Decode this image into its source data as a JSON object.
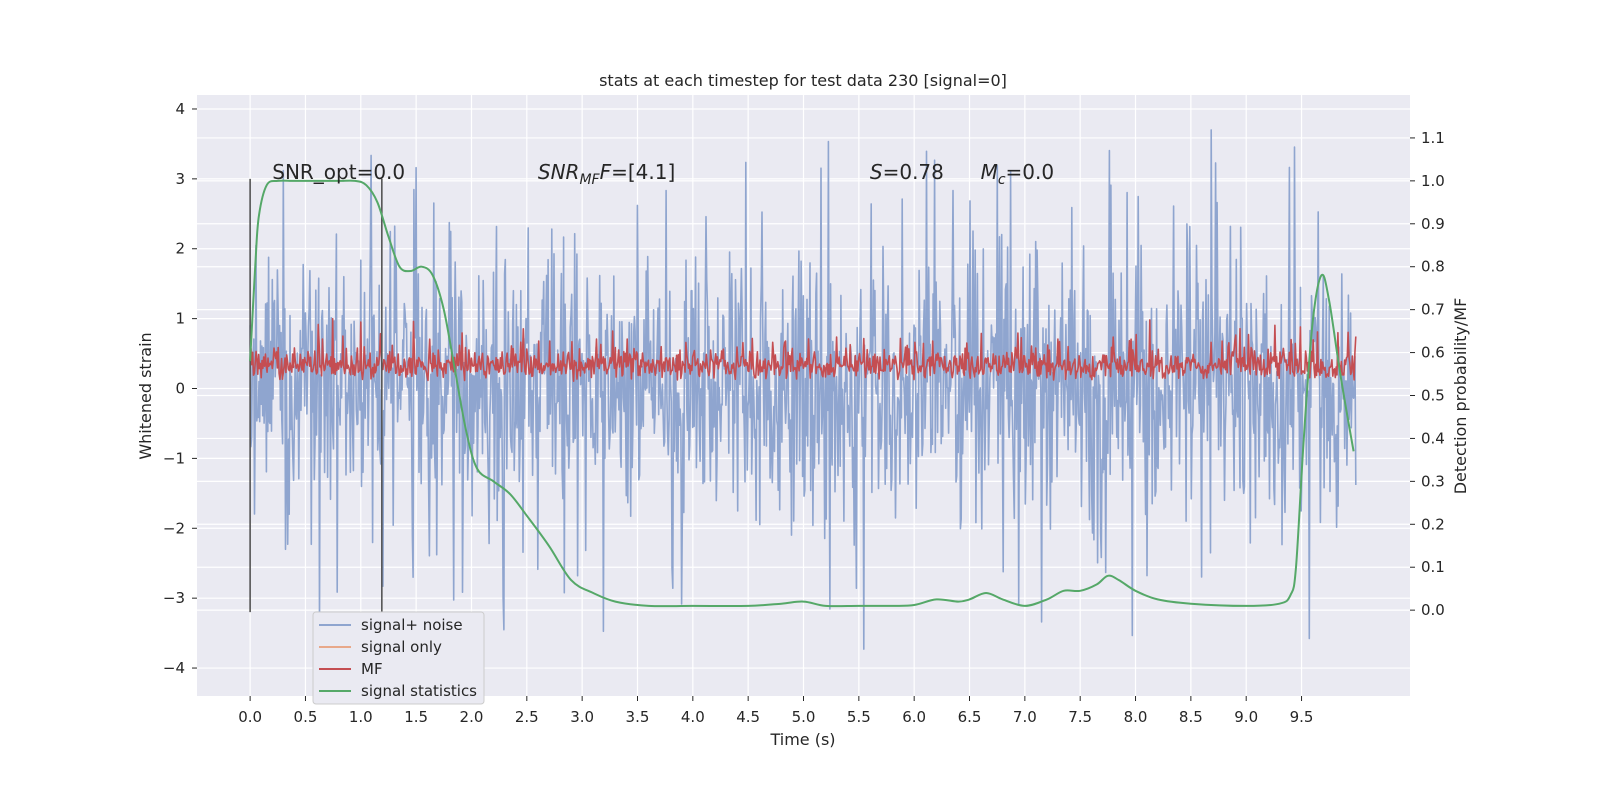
{
  "chart_data": {
    "type": "line",
    "title": "stats at each timestep for test data 230 [signal=0]",
    "xlabel": "Time (s)",
    "ylabel": "Whitened strain",
    "ylabel_right": "Detection probability/MF",
    "xlim": [
      -0.48,
      10.48
    ],
    "ylim": [
      -4.4,
      4.2
    ],
    "ylim_right": [
      -0.2,
      1.2
    ],
    "x_ticks": [
      "0.0",
      "0.5",
      "1.0",
      "1.5",
      "2.0",
      "2.5",
      "3.0",
      "3.5",
      "4.0",
      "4.5",
      "5.0",
      "5.5",
      "6.0",
      "6.5",
      "7.0",
      "7.5",
      "8.0",
      "8.5",
      "9.0",
      "9.5"
    ],
    "y_ticks": [
      "−4",
      "−3",
      "−2",
      "−1",
      "0",
      "1",
      "2",
      "3",
      "4"
    ],
    "y_ticks_right": [
      "0.0",
      "0.1",
      "0.2",
      "0.3",
      "0.4",
      "0.5",
      "0.6",
      "0.7",
      "0.8",
      "0.9",
      "1.0",
      "1.1"
    ],
    "grid": true,
    "legend_position": "lower-left",
    "annotations": [
      {
        "text": "SNR_opt=0.0",
        "x": 0.2,
        "y": 3.0
      },
      {
        "text": "SNR",
        "sub": "MF",
        "tail": "F=[4.1]",
        "x": 2.6,
        "y": 3.0
      },
      {
        "text": "S",
        "tail": "=0.78",
        "x": 5.6,
        "y": 3.0
      },
      {
        "text": "M",
        "sub": "c",
        "tail": "=0.0",
        "x": 6.6,
        "y": 3.0
      }
    ],
    "vlines": [
      {
        "x": 0.0,
        "y_range": [
          -3.2,
          3.0
        ],
        "color": "#555555"
      },
      {
        "x": 1.19,
        "y_range": [
          -3.2,
          3.0
        ],
        "color": "#555555"
      }
    ],
    "series": [
      {
        "name": "signal+ noise",
        "color": "#8fa5cf",
        "axis": "left",
        "x_range": [
          0.0,
          9.99
        ],
        "typical_amplitude": 1.0,
        "peak_min": -4.0,
        "peak_max": 3.8
      },
      {
        "name": "signal only",
        "color": "#e8a88a",
        "axis": "left",
        "x": [],
        "y": []
      },
      {
        "name": "MF",
        "color": "#c44e52",
        "axis": "left",
        "x_range": [
          0.0,
          9.99
        ],
        "baseline": 0.3,
        "typical_amplitude": 0.35,
        "peak_max": 1.0,
        "peak_min": 0.0
      },
      {
        "name": "signal statistics",
        "color": "#55a868",
        "axis": "right",
        "x": [
          0.0,
          0.05,
          0.08,
          0.15,
          0.25,
          0.4,
          0.6,
          0.8,
          0.95,
          1.05,
          1.15,
          1.25,
          1.35,
          1.45,
          1.55,
          1.65,
          1.75,
          1.85,
          1.95,
          2.05,
          2.2,
          2.35,
          2.5,
          2.7,
          2.9,
          3.1,
          3.3,
          3.6,
          4.0,
          4.5,
          4.8,
          5.0,
          5.2,
          5.5,
          5.8,
          6.0,
          6.2,
          6.4,
          6.5,
          6.65,
          6.8,
          7.0,
          7.2,
          7.35,
          7.5,
          7.65,
          7.75,
          7.85,
          8.0,
          8.2,
          8.5,
          9.0,
          9.3,
          9.4,
          9.45,
          9.52,
          9.6,
          9.68,
          9.75,
          9.85,
          9.97
        ],
        "y": [
          0.58,
          0.82,
          0.92,
          0.99,
          1.0,
          1.0,
          1.0,
          1.0,
          1.0,
          0.99,
          0.95,
          0.87,
          0.8,
          0.79,
          0.8,
          0.78,
          0.7,
          0.56,
          0.42,
          0.33,
          0.3,
          0.27,
          0.22,
          0.15,
          0.07,
          0.04,
          0.02,
          0.01,
          0.01,
          0.01,
          0.015,
          0.02,
          0.01,
          0.01,
          0.01,
          0.012,
          0.025,
          0.02,
          0.025,
          0.04,
          0.025,
          0.01,
          0.025,
          0.045,
          0.045,
          0.06,
          0.08,
          0.07,
          0.045,
          0.025,
          0.015,
          0.01,
          0.015,
          0.035,
          0.1,
          0.4,
          0.67,
          0.78,
          0.72,
          0.55,
          0.37
        ]
      }
    ]
  }
}
